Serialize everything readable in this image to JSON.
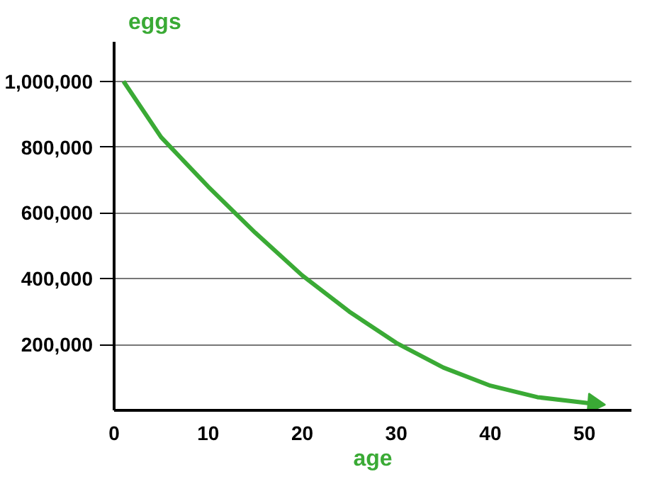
{
  "chart_data": {
    "type": "line",
    "ylabel": "eggs",
    "xlabel": "age",
    "x": [
      1,
      5,
      10,
      15,
      20,
      25,
      30,
      35,
      40,
      45,
      51
    ],
    "series": [
      {
        "color": "#3aaa35",
        "values": [
          1000000,
          830000,
          680000,
          540000,
          410000,
          300000,
          205000,
          130000,
          75000,
          40000,
          20000
        ]
      }
    ],
    "xlim": [
      0,
      55
    ],
    "ylim": [
      0,
      1120000
    ],
    "xticks": [
      0,
      10,
      20,
      30,
      40,
      50
    ],
    "yticks": [
      {
        "value": 200000,
        "label": "200,000"
      },
      {
        "value": 400000,
        "label": "400,000"
      },
      {
        "value": 600000,
        "label": "600,000"
      },
      {
        "value": 800000,
        "label": "800,000"
      },
      {
        "value": 1000000,
        "label": "1,000,000"
      }
    ],
    "grid": "y",
    "marker": "none",
    "line_style": "solid"
  }
}
